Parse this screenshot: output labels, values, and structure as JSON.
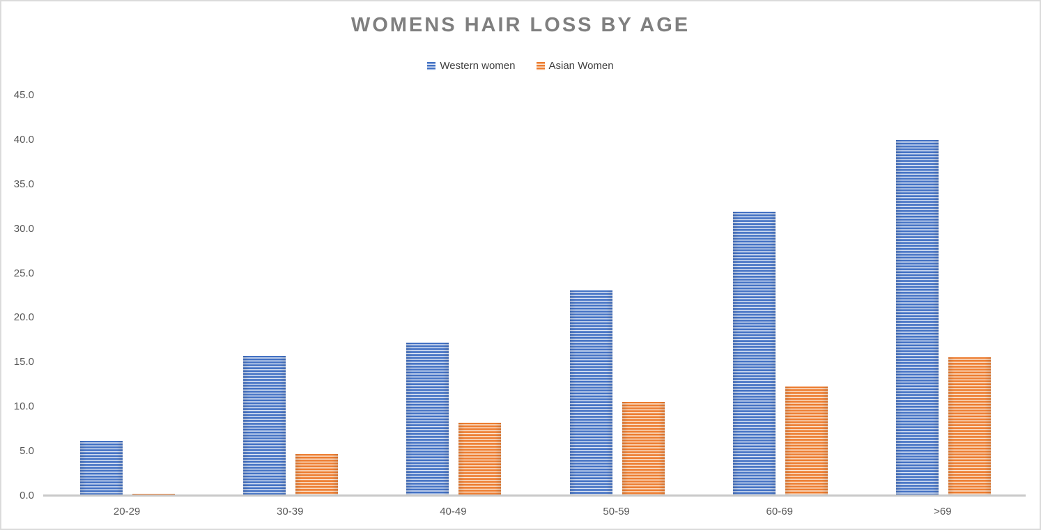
{
  "chart_data": {
    "type": "bar",
    "title": "WOMENS HAIR LOSS BY AGE",
    "categories": [
      "20-29",
      "30-39",
      "40-49",
      "50-59",
      "60-69",
      ">69"
    ],
    "series": [
      {
        "name": "Western women",
        "color": "#4472C4",
        "stripe_light": "#e7edf8",
        "values": [
          6.2,
          15.7,
          17.2,
          23.1,
          31.9,
          40.0
        ]
      },
      {
        "name": "Asian Women",
        "color": "#ED7D31",
        "stripe_light": "#fcecdc",
        "values": [
          0.2,
          4.7,
          8.2,
          10.6,
          12.3,
          15.6
        ]
      }
    ],
    "ylim": [
      0,
      45
    ],
    "yticks": [
      "0.0",
      "5.0",
      "10.0",
      "15.0",
      "20.0",
      "25.0",
      "30.0",
      "35.0",
      "40.0",
      "45.0"
    ],
    "grid": false,
    "legend_position": "top",
    "colors": {
      "title": "#7f7f7f",
      "axis_labels": "#595959",
      "legend_text": "#404040",
      "axis_line": "#c9c9c9",
      "background": "#ffffff",
      "frame_border": "#dbdbdb"
    }
  }
}
